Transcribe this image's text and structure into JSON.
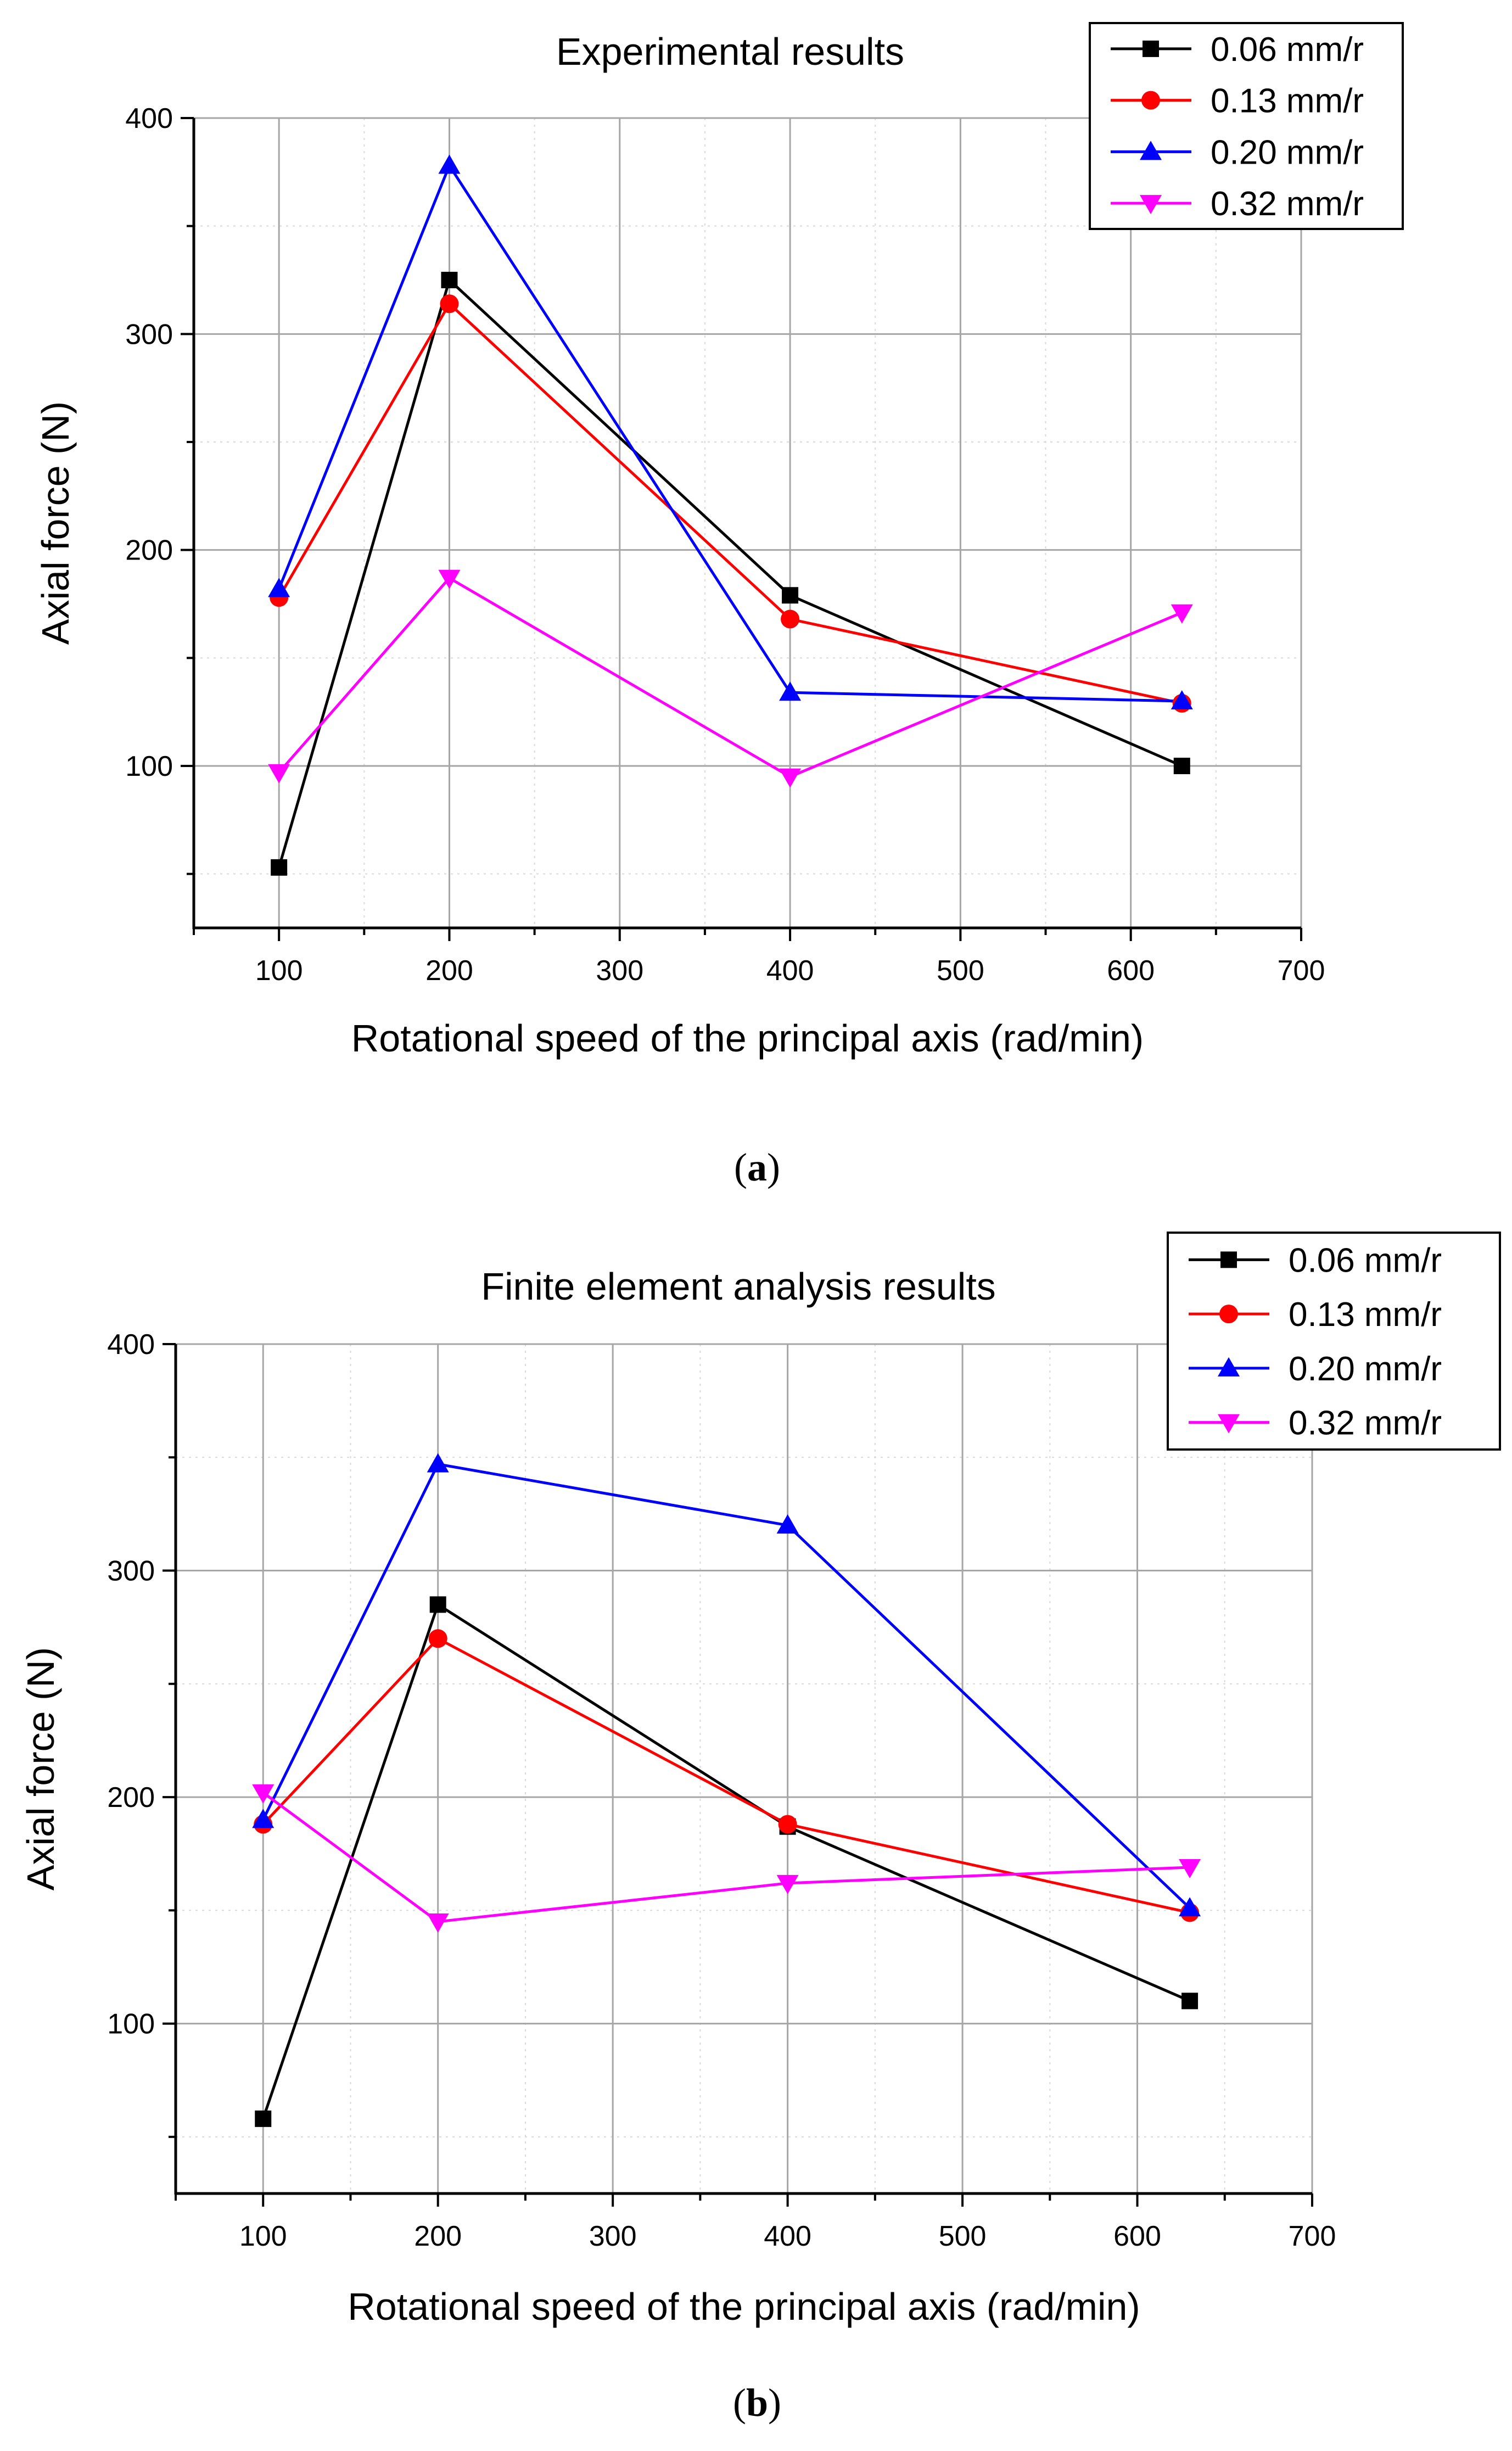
{
  "figure": {
    "panel_labels": [
      {
        "open": "(",
        "letter": "a",
        "close": ")"
      },
      {
        "open": "(",
        "letter": "b",
        "close": ")"
      }
    ]
  },
  "chart_data": [
    {
      "type": "line",
      "title": "Experimental results",
      "xlabel": "Rotational speed of the principal axis (rad/min)",
      "ylabel": "Axial force (N)",
      "xlim": [
        50,
        700
      ],
      "ylim": [
        25,
        400
      ],
      "xticks": [
        100,
        200,
        300,
        400,
        500,
        600,
        700
      ],
      "yticks": [
        100,
        200,
        300,
        400
      ],
      "grid": true,
      "legend_position": "top-right",
      "x": [
        100,
        200,
        400,
        630
      ],
      "series": [
        {
          "name": "0.06 mm/r",
          "color": "#000000",
          "marker": "square",
          "values": [
            53,
            325,
            179,
            100
          ]
        },
        {
          "name": "0.13 mm/r",
          "color": "#ff0000",
          "marker": "circle",
          "values": [
            178,
            314,
            168,
            129
          ]
        },
        {
          "name": "0.20 mm/r",
          "color": "#0000ff",
          "marker": "triangle-up",
          "values": [
            182,
            378,
            134,
            130
          ]
        },
        {
          "name": "0.32 mm/r",
          "color": "#ff00ff",
          "marker": "triangle-down",
          "values": [
            97,
            187,
            95,
            171
          ]
        }
      ]
    },
    {
      "type": "line",
      "title": "Finite element analysis results",
      "xlabel": "Rotational speed of the principal axis (rad/min)",
      "ylabel": "Axial force (N)",
      "xlim": [
        50,
        700
      ],
      "ylim": [
        25,
        400
      ],
      "xticks": [
        100,
        200,
        300,
        400,
        500,
        600,
        700
      ],
      "yticks": [
        100,
        200,
        300,
        400
      ],
      "grid": true,
      "legend_position": "top-right",
      "x": [
        100,
        200,
        400,
        630
      ],
      "series": [
        {
          "name": "0.06 mm/r",
          "color": "#000000",
          "marker": "square",
          "values": [
            58,
            285,
            187,
            110
          ]
        },
        {
          "name": "0.13 mm/r",
          "color": "#ff0000",
          "marker": "circle",
          "values": [
            188,
            270,
            188,
            149
          ]
        },
        {
          "name": "0.20 mm/r",
          "color": "#0000ff",
          "marker": "triangle-up",
          "values": [
            190,
            347,
            320,
            151
          ]
        },
        {
          "name": "0.32 mm/r",
          "color": "#ff00ff",
          "marker": "triangle-down",
          "values": [
            202,
            145,
            162,
            169
          ]
        }
      ]
    }
  ]
}
